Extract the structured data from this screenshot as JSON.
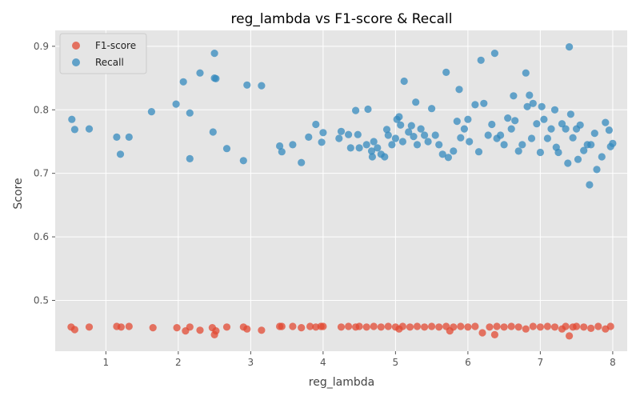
{
  "chart_data": {
    "type": "scatter",
    "title": "reg_lambda vs F1-score & Recall",
    "xlabel": "reg_lambda",
    "ylabel": "Score",
    "xlim": [
      0.3,
      8.2
    ],
    "ylim": [
      0.42,
      0.925
    ],
    "xticks": [
      1,
      2,
      3,
      4,
      5,
      6,
      7,
      8
    ],
    "yticks": [
      0.5,
      0.6,
      0.7,
      0.8,
      0.9
    ],
    "grid": true,
    "legend_position": "top-left",
    "series": [
      {
        "name": "F1-score",
        "color": "#e24a33",
        "points": [
          [
            0.52,
            0.458
          ],
          [
            0.57,
            0.454
          ],
          [
            0.77,
            0.458
          ],
          [
            1.15,
            0.459
          ],
          [
            1.21,
            0.458
          ],
          [
            1.32,
            0.459
          ],
          [
            1.65,
            0.457
          ],
          [
            1.98,
            0.457
          ],
          [
            2.1,
            0.452
          ],
          [
            2.16,
            0.458
          ],
          [
            2.3,
            0.453
          ],
          [
            2.47,
            0.457
          ],
          [
            2.5,
            0.446
          ],
          [
            2.52,
            0.452
          ],
          [
            2.67,
            0.458
          ],
          [
            2.9,
            0.458
          ],
          [
            2.95,
            0.455
          ],
          [
            3.15,
            0.453
          ],
          [
            3.4,
            0.459
          ],
          [
            3.43,
            0.459
          ],
          [
            3.58,
            0.459
          ],
          [
            3.7,
            0.457
          ],
          [
            3.82,
            0.459
          ],
          [
            3.9,
            0.458
          ],
          [
            3.97,
            0.459
          ],
          [
            4.0,
            0.459
          ],
          [
            4.25,
            0.458
          ],
          [
            4.35,
            0.459
          ],
          [
            4.45,
            0.458
          ],
          [
            4.5,
            0.459
          ],
          [
            4.6,
            0.458
          ],
          [
            4.7,
            0.459
          ],
          [
            4.8,
            0.458
          ],
          [
            4.9,
            0.459
          ],
          [
            5.0,
            0.458
          ],
          [
            5.05,
            0.455
          ],
          [
            5.1,
            0.459
          ],
          [
            5.2,
            0.458
          ],
          [
            5.3,
            0.459
          ],
          [
            5.4,
            0.458
          ],
          [
            5.5,
            0.459
          ],
          [
            5.6,
            0.458
          ],
          [
            5.7,
            0.459
          ],
          [
            5.75,
            0.452
          ],
          [
            5.8,
            0.458
          ],
          [
            5.9,
            0.459
          ],
          [
            6.0,
            0.458
          ],
          [
            6.1,
            0.459
          ],
          [
            6.2,
            0.449
          ],
          [
            6.3,
            0.458
          ],
          [
            6.37,
            0.446
          ],
          [
            6.4,
            0.459
          ],
          [
            6.5,
            0.458
          ],
          [
            6.6,
            0.459
          ],
          [
            6.7,
            0.458
          ],
          [
            6.8,
            0.455
          ],
          [
            6.9,
            0.459
          ],
          [
            7.0,
            0.458
          ],
          [
            7.1,
            0.459
          ],
          [
            7.2,
            0.458
          ],
          [
            7.3,
            0.455
          ],
          [
            7.35,
            0.459
          ],
          [
            7.4,
            0.444
          ],
          [
            7.45,
            0.458
          ],
          [
            7.5,
            0.459
          ],
          [
            7.6,
            0.458
          ],
          [
            7.7,
            0.456
          ],
          [
            7.8,
            0.459
          ],
          [
            7.9,
            0.455
          ],
          [
            7.97,
            0.459
          ]
        ]
      },
      {
        "name": "Recall",
        "color": "#348abd",
        "points": [
          [
            0.53,
            0.785
          ],
          [
            0.57,
            0.769
          ],
          [
            0.77,
            0.77
          ],
          [
            1.15,
            0.757
          ],
          [
            1.2,
            0.73
          ],
          [
            1.32,
            0.757
          ],
          [
            1.63,
            0.797
          ],
          [
            1.97,
            0.809
          ],
          [
            2.07,
            0.844
          ],
          [
            2.16,
            0.795
          ],
          [
            2.16,
            0.723
          ],
          [
            2.3,
            0.858
          ],
          [
            2.48,
            0.765
          ],
          [
            2.5,
            0.889
          ],
          [
            2.5,
            0.85
          ],
          [
            2.52,
            0.849
          ],
          [
            2.67,
            0.739
          ],
          [
            2.9,
            0.72
          ],
          [
            2.95,
            0.839
          ],
          [
            3.15,
            0.838
          ],
          [
            3.4,
            0.743
          ],
          [
            3.43,
            0.734
          ],
          [
            3.58,
            0.745
          ],
          [
            3.7,
            0.717
          ],
          [
            3.8,
            0.757
          ],
          [
            3.9,
            0.777
          ],
          [
            3.98,
            0.749
          ],
          [
            4.0,
            0.764
          ],
          [
            4.22,
            0.755
          ],
          [
            4.25,
            0.766
          ],
          [
            4.35,
            0.761
          ],
          [
            4.38,
            0.74
          ],
          [
            4.45,
            0.799
          ],
          [
            4.48,
            0.761
          ],
          [
            4.5,
            0.74
          ],
          [
            4.6,
            0.745
          ],
          [
            4.62,
            0.801
          ],
          [
            4.67,
            0.735
          ],
          [
            4.68,
            0.726
          ],
          [
            4.7,
            0.75
          ],
          [
            4.75,
            0.74
          ],
          [
            4.8,
            0.73
          ],
          [
            4.85,
            0.726
          ],
          [
            4.88,
            0.769
          ],
          [
            4.9,
            0.76
          ],
          [
            4.95,
            0.745
          ],
          [
            5.0,
            0.755
          ],
          [
            5.02,
            0.785
          ],
          [
            5.05,
            0.789
          ],
          [
            5.07,
            0.776
          ],
          [
            5.1,
            0.75
          ],
          [
            5.12,
            0.845
          ],
          [
            5.18,
            0.765
          ],
          [
            5.22,
            0.775
          ],
          [
            5.25,
            0.758
          ],
          [
            5.28,
            0.812
          ],
          [
            5.3,
            0.745
          ],
          [
            5.35,
            0.77
          ],
          [
            5.4,
            0.76
          ],
          [
            5.45,
            0.75
          ],
          [
            5.5,
            0.802
          ],
          [
            5.55,
            0.76
          ],
          [
            5.6,
            0.745
          ],
          [
            5.65,
            0.73
          ],
          [
            5.7,
            0.859
          ],
          [
            5.73,
            0.725
          ],
          [
            5.8,
            0.735
          ],
          [
            5.85,
            0.782
          ],
          [
            5.88,
            0.832
          ],
          [
            5.9,
            0.756
          ],
          [
            5.95,
            0.77
          ],
          [
            6.0,
            0.785
          ],
          [
            6.02,
            0.75
          ],
          [
            6.1,
            0.808
          ],
          [
            6.15,
            0.734
          ],
          [
            6.18,
            0.878
          ],
          [
            6.22,
            0.81
          ],
          [
            6.28,
            0.76
          ],
          [
            6.33,
            0.777
          ],
          [
            6.37,
            0.889
          ],
          [
            6.4,
            0.755
          ],
          [
            6.45,
            0.76
          ],
          [
            6.5,
            0.745
          ],
          [
            6.55,
            0.787
          ],
          [
            6.6,
            0.77
          ],
          [
            6.63,
            0.822
          ],
          [
            6.65,
            0.783
          ],
          [
            6.7,
            0.735
          ],
          [
            6.75,
            0.745
          ],
          [
            6.8,
            0.858
          ],
          [
            6.82,
            0.805
          ],
          [
            6.85,
            0.823
          ],
          [
            6.88,
            0.755
          ],
          [
            6.9,
            0.81
          ],
          [
            6.95,
            0.778
          ],
          [
            7.0,
            0.733
          ],
          [
            7.02,
            0.805
          ],
          [
            7.05,
            0.785
          ],
          [
            7.1,
            0.755
          ],
          [
            7.15,
            0.77
          ],
          [
            7.2,
            0.8
          ],
          [
            7.22,
            0.741
          ],
          [
            7.25,
            0.733
          ],
          [
            7.3,
            0.778
          ],
          [
            7.35,
            0.77
          ],
          [
            7.38,
            0.716
          ],
          [
            7.4,
            0.899
          ],
          [
            7.42,
            0.793
          ],
          [
            7.45,
            0.756
          ],
          [
            7.5,
            0.77
          ],
          [
            7.52,
            0.722
          ],
          [
            7.55,
            0.776
          ],
          [
            7.6,
            0.736
          ],
          [
            7.65,
            0.745
          ],
          [
            7.68,
            0.682
          ],
          [
            7.7,
            0.745
          ],
          [
            7.75,
            0.763
          ],
          [
            7.78,
            0.706
          ],
          [
            7.85,
            0.726
          ],
          [
            7.9,
            0.78
          ],
          [
            7.95,
            0.768
          ],
          [
            7.97,
            0.742
          ],
          [
            8.0,
            0.747
          ]
        ]
      }
    ]
  }
}
